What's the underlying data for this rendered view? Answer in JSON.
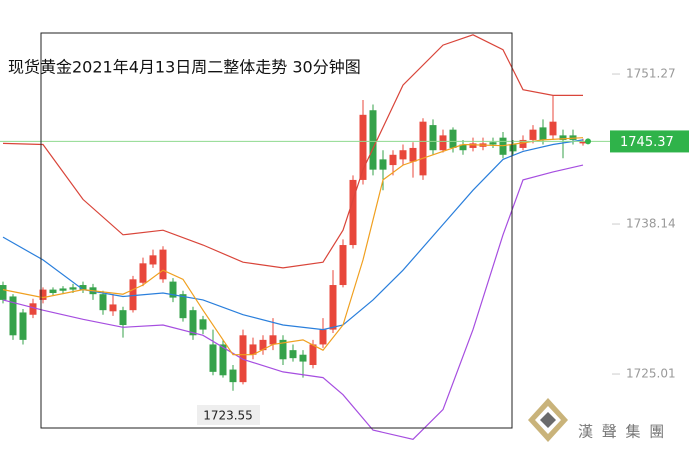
{
  "chart_data": {
    "type": "candlestick",
    "title": "现货黄金2021年4月13日周二整体走势  30分钟图",
    "categories": [
      null,
      null,
      null,
      null,
      null,
      null,
      null,
      null,
      null,
      null,
      null,
      null,
      null,
      null,
      null,
      null,
      null,
      null,
      null,
      null,
      null,
      null,
      null,
      null,
      null,
      null,
      null,
      null,
      null,
      null,
      null,
      null,
      null,
      null,
      null,
      null,
      null,
      null,
      null,
      null,
      null,
      null,
      null,
      null,
      null,
      null,
      null,
      null,
      null,
      null,
      null,
      null,
      null,
      null,
      null,
      null,
      null,
      null,
      null
    ],
    "open": [
      1732.8,
      1731.8,
      1730.4,
      1730.2,
      1731.5,
      1732.4,
      1732.5,
      1732.6,
      1732.8,
      1732.6,
      1732.0,
      1730.5,
      1730.6,
      1730.6,
      1733.0,
      1734.6,
      1733.3,
      1733.1,
      1732.0,
      1730.6,
      1729.8,
      1727.6,
      1727.6,
      1725.4,
      1724.3,
      1726.7,
      1727.1,
      1727.6,
      1728.0,
      1727.1,
      1726.7,
      1725.8,
      1727.6,
      1728.9,
      1732.8,
      1736.3,
      1742.0,
      1748.1,
      1743.8,
      1743.3,
      1743.8,
      1743.6,
      1742.4,
      1746.8,
      1744.6,
      1746.4,
      1745.1,
      1744.8,
      1744.9,
      1745.3,
      1745.7,
      1745.1,
      1744.8,
      1745.5,
      1746.6,
      1745.9,
      1745.9,
      1745.9,
      1745.2
    ],
    "high": [
      1733.1,
      1732.0,
      1730.7,
      1731.6,
      1732.6,
      1732.6,
      1732.7,
      1732.9,
      1733.1,
      1732.9,
      1732.3,
      1732.0,
      1730.9,
      1733.6,
      1735.2,
      1735.9,
      1736.2,
      1733.4,
      1732.3,
      1730.9,
      1730.1,
      1728.9,
      1728.0,
      1725.8,
      1728.9,
      1728.2,
      1728.4,
      1729.9,
      1728.4,
      1727.6,
      1727.1,
      1728.0,
      1729.9,
      1734.1,
      1736.8,
      1742.4,
      1749.0,
      1748.6,
      1744.6,
      1744.6,
      1745.1,
      1745.3,
      1747.4,
      1747.3,
      1746.4,
      1746.6,
      1745.5,
      1745.7,
      1745.7,
      1745.7,
      1746.2,
      1745.5,
      1745.9,
      1746.8,
      1747.3,
      1749.4,
      1746.4,
      1746.4,
      1745.6
    ],
    "low": [
      1731.2,
      1728.0,
      1727.6,
      1729.9,
      1731.2,
      1731.9,
      1732.0,
      1732.1,
      1732.1,
      1731.5,
      1730.2,
      1730.1,
      1728.2,
      1730.4,
      1732.7,
      1734.3,
      1733.0,
      1731.3,
      1729.6,
      1728.0,
      1728.5,
      1724.9,
      1724.7,
      1723.55,
      1724.1,
      1726.3,
      1726.7,
      1727.1,
      1725.8,
      1726.1,
      1724.7,
      1725.5,
      1727.3,
      1728.6,
      1732.6,
      1736.0,
      1741.6,
      1742.4,
      1741.1,
      1742.4,
      1743.3,
      1742.2,
      1742.0,
      1744.2,
      1744.4,
      1744.4,
      1744.2,
      1744.5,
      1744.6,
      1744.8,
      1743.9,
      1744.2,
      1744.6,
      1745.2,
      1745.1,
      1745.5,
      1743.9,
      1745.1,
      1745.0
    ],
    "close": [
      1731.5,
      1728.4,
      1728.0,
      1731.2,
      1732.4,
      1732.1,
      1732.3,
      1732.4,
      1732.4,
      1732.0,
      1730.6,
      1731.1,
      1729.3,
      1733.3,
      1734.7,
      1735.4,
      1735.9,
      1731.7,
      1729.9,
      1728.4,
      1728.9,
      1725.2,
      1724.9,
      1724.3,
      1728.4,
      1727.6,
      1728.0,
      1728.4,
      1726.3,
      1726.4,
      1726.1,
      1727.6,
      1728.9,
      1732.8,
      1736.3,
      1742.0,
      1747.7,
      1742.9,
      1742.9,
      1744.2,
      1744.6,
      1744.8,
      1747.1,
      1744.6,
      1745.9,
      1744.8,
      1744.6,
      1745.2,
      1745.2,
      1745.1,
      1744.2,
      1744.5,
      1745.5,
      1746.4,
      1745.5,
      1747.1,
      1745.5,
      1745.5,
      1745.37
    ],
    "up_color": "#e8473b",
    "down_color": "#35a24a",
    "overlays": [
      {
        "color": "#d9453a",
        "x": [
          0,
          4,
          8,
          12,
          16,
          20,
          24,
          28,
          32,
          34,
          36,
          40,
          44,
          47,
          50,
          52,
          55,
          58
        ],
        "values": [
          1745.2,
          1745.1,
          1740.3,
          1737.2,
          1737.6,
          1736.3,
          1734.8,
          1734.3,
          1734.8,
          1737.6,
          1742.9,
          1750.3,
          1753.8,
          1754.7,
          1753.4,
          1749.9,
          1749.4,
          1749.4
        ]
      },
      {
        "color": "#2a7fdc",
        "x": [
          0,
          4,
          8,
          12,
          16,
          20,
          24,
          28,
          32,
          34,
          37,
          40,
          44,
          47,
          50,
          52,
          55,
          58
        ],
        "values": [
          1737.0,
          1735.0,
          1732.4,
          1731.8,
          1732.1,
          1731.5,
          1730.2,
          1729.3,
          1728.9,
          1729.3,
          1731.5,
          1734.1,
          1738.1,
          1741.1,
          1743.8,
          1744.5,
          1745.1,
          1745.5
        ]
      },
      {
        "color": "#a64ee0",
        "x": [
          0,
          4,
          8,
          12,
          16,
          20,
          24,
          28,
          32,
          34,
          37,
          41,
          44,
          47,
          50,
          52,
          55,
          58
        ],
        "values": [
          1731.5,
          1730.6,
          1729.8,
          1729.1,
          1729.3,
          1728.4,
          1726.3,
          1725.2,
          1724.7,
          1723.2,
          1720.1,
          1719.3,
          1721.9,
          1728.9,
          1737.2,
          1742.0,
          1742.7,
          1743.3
        ]
      },
      {
        "color": "#f0a020",
        "x": [
          0,
          4,
          8,
          12,
          14,
          16,
          18,
          20,
          23,
          25,
          27,
          30,
          32,
          34,
          36,
          38,
          40,
          43,
          46,
          50,
          54,
          58
        ],
        "values": [
          1732.4,
          1731.7,
          1732.4,
          1732.0,
          1732.8,
          1734.1,
          1733.3,
          1730.6,
          1726.7,
          1726.7,
          1727.6,
          1728.0,
          1727.1,
          1729.3,
          1735.0,
          1742.0,
          1743.3,
          1744.2,
          1745.1,
          1745.0,
          1745.5,
          1745.7
        ]
      }
    ],
    "last_price": 1745.37,
    "last_price_color": "#2fb34a",
    "low_label": 1723.55,
    "ylim": [
      1718.36,
      1757.75
    ],
    "yticks": [
      1725.01,
      1738.14,
      1751.27
    ],
    "brand": "漢 聲 集 團"
  }
}
